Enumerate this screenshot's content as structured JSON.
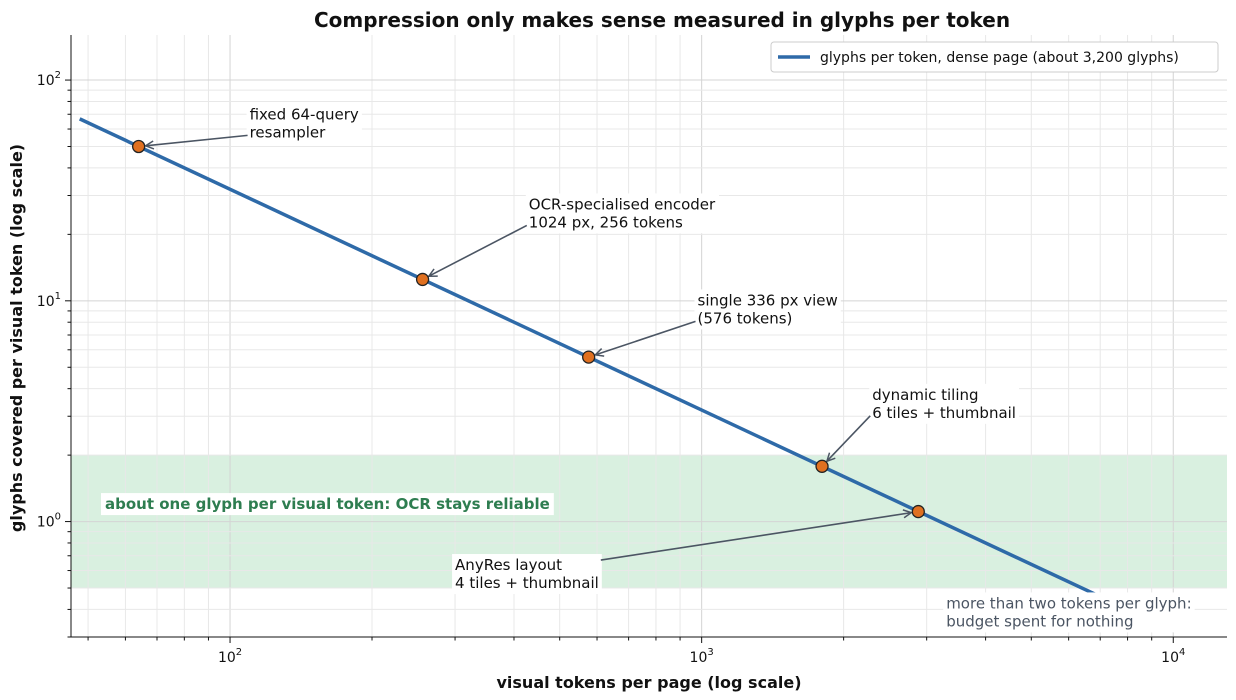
{
  "chart_data": {
    "type": "line",
    "title": "Compression only makes sense measured in glyphs per token",
    "xlabel": "visual tokens per page (log scale)",
    "ylabel": "glyphs covered per visual token (log scale)",
    "xscale": "log",
    "yscale": "log",
    "xlim": [
      46,
      13000
    ],
    "ylim": [
      0.3,
      160
    ],
    "grid": true,
    "legend_position": "top-right",
    "x_ticks": [
      {
        "value": 100,
        "base": "10",
        "exp": "2"
      },
      {
        "value": 1000,
        "base": "10",
        "exp": "3"
      },
      {
        "value": 10000,
        "base": "10",
        "exp": "4"
      }
    ],
    "y_ticks": [
      {
        "value": 1,
        "base": "10",
        "exp": "0"
      },
      {
        "value": 10,
        "base": "10",
        "exp": "1"
      },
      {
        "value": 100,
        "base": "10",
        "exp": "2"
      }
    ],
    "series": [
      {
        "name": "glyphs per token, dense page (about 3,200 glyphs)",
        "color": "#2e6aa8",
        "x": [
          48,
          10000
        ],
        "y": [
          66.7,
          0.32
        ]
      }
    ],
    "points": [
      {
        "x": 64,
        "y": 50,
        "label_lines": [
          "fixed 64-query",
          "resampler"
        ],
        "label_x": 110,
        "label_y": 55
      },
      {
        "x": 256,
        "y": 12.5,
        "label_lines": [
          "OCR-specialised encoder",
          "1024 px, 256 tokens"
        ],
        "label_x": 430,
        "label_y": 21.5
      },
      {
        "x": 576,
        "y": 5.56,
        "label_lines": [
          "single 336 px view",
          "(576 tokens)"
        ],
        "label_x": 980,
        "label_y": 7.9
      },
      {
        "x": 1800,
        "y": 1.78,
        "label_lines": [
          "dynamic tiling",
          "6 tiles + thumbnail"
        ],
        "label_x": 2300,
        "label_y": 2.95
      },
      {
        "x": 2880,
        "y": 1.11,
        "label_lines": [
          "AnyRes layout",
          "4 tiles + thumbnail"
        ],
        "label_x": 300,
        "label_y": 0.5
      }
    ],
    "point_color": "#e07020",
    "band": {
      "y_range": [
        0.5,
        2.0
      ],
      "color": "#d9f0e0",
      "label": "about one glyph per visual token: OCR stays reliable"
    },
    "note": {
      "lines": [
        "more than two tokens per glyph:",
        "budget spent for nothing"
      ],
      "x": 3300,
      "y": 0.335
    }
  }
}
